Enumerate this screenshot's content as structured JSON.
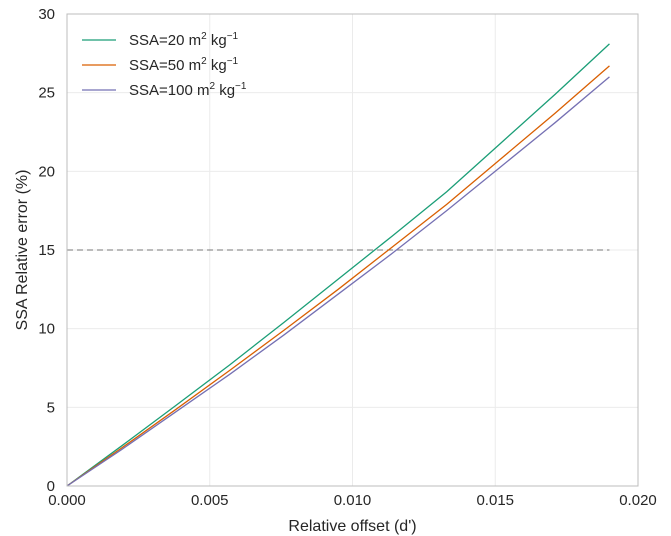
{
  "chart_data": {
    "type": "line",
    "xlabel": "Relative offset (d')",
    "ylabel": "SSA Relative error (%)",
    "xlim": [
      0.0,
      0.02
    ],
    "ylim": [
      0,
      30
    ],
    "xticks": [
      "0.000",
      "0.005",
      "0.010",
      "0.015",
      "0.020"
    ],
    "yticks": [
      "0",
      "5",
      "10",
      "15",
      "20",
      "25",
      "30"
    ],
    "grid": true,
    "legend_position": "top-left",
    "reference_line": {
      "y": 15,
      "style": "dashed",
      "color": "#777777"
    },
    "series": [
      {
        "name": "SSA=20 m² kg⁻¹",
        "legend_prefix": "SSA=20 m",
        "legend_sup1": "2",
        "legend_mid": " kg",
        "legend_sup2": "−1",
        "color": "#1b9e77",
        "x": [
          0.0,
          0.0019,
          0.0038,
          0.0057,
          0.0076,
          0.0095,
          0.0114,
          0.0133,
          0.0152,
          0.0171,
          0.019
        ],
        "y": [
          0.0,
          2.53,
          5.1,
          7.7,
          10.4,
          13.15,
          15.9,
          18.7,
          21.8,
          24.9,
          28.1
        ]
      },
      {
        "name": "SSA=50 m² kg⁻¹",
        "legend_prefix": "SSA=50 m",
        "legend_sup1": "2",
        "legend_mid": " kg",
        "legend_sup2": "−1",
        "color": "#d95f02",
        "x": [
          0.0,
          0.0019,
          0.0038,
          0.0057,
          0.0076,
          0.0095,
          0.0114,
          0.0133,
          0.0152,
          0.0171,
          0.019
        ],
        "y": [
          0.0,
          2.4,
          4.85,
          7.35,
          9.9,
          12.5,
          15.2,
          17.9,
          20.8,
          23.7,
          26.7
        ]
      },
      {
        "name": "SSA=100 m² kg⁻¹",
        "legend_prefix": "SSA=100 m",
        "legend_sup1": "2",
        "legend_mid": " kg",
        "legend_sup2": "−1",
        "color": "#7570b3",
        "x": [
          0.0,
          0.0019,
          0.0038,
          0.0057,
          0.0076,
          0.0095,
          0.0114,
          0.0133,
          0.0152,
          0.0171,
          0.019
        ],
        "y": [
          0.0,
          2.3,
          4.7,
          7.1,
          9.6,
          12.2,
          14.8,
          17.5,
          20.3,
          23.1,
          26.0
        ]
      }
    ]
  }
}
